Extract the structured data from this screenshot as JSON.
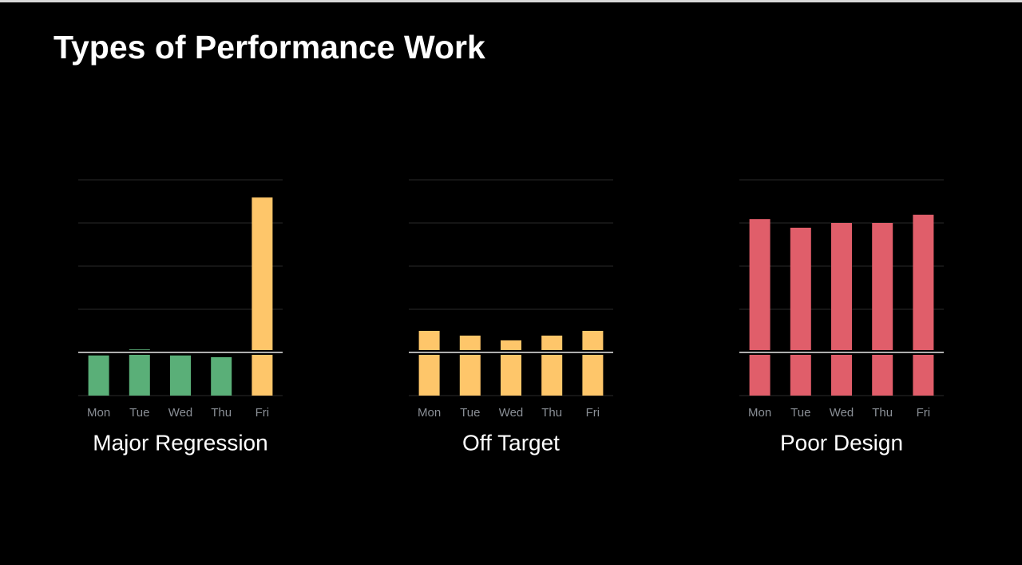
{
  "title": "Types of Performance Work",
  "chart_data": [
    {
      "type": "bar",
      "title": "Major Regression",
      "categories": [
        "Mon",
        "Tue",
        "Wed",
        "Thu",
        "Fri"
      ],
      "values": [
        0.93,
        1.07,
        0.93,
        0.89,
        4.59
      ],
      "colors": [
        "#5aaf78",
        "#5aaf78",
        "#5aaf78",
        "#5aaf78",
        "#fec66a"
      ],
      "ylim": [
        0,
        5
      ],
      "yticks": [
        0,
        1,
        2,
        3,
        4,
        5
      ],
      "grid": true,
      "target": 1
    },
    {
      "type": "bar",
      "title": "Off Target",
      "categories": [
        "Mon",
        "Tue",
        "Wed",
        "Thu",
        "Fri"
      ],
      "values": [
        1.5,
        1.39,
        1.28,
        1.39,
        1.5
      ],
      "colors": [
        "#fec66a",
        "#fec66a",
        "#fec66a",
        "#fec66a",
        "#fec66a"
      ],
      "ylim": [
        0,
        5
      ],
      "yticks": [
        0,
        1,
        2,
        3,
        4,
        5
      ],
      "grid": true,
      "target": 1
    },
    {
      "type": "bar",
      "title": "Poor Design",
      "categories": [
        "Mon",
        "Tue",
        "Wed",
        "Thu",
        "Fri"
      ],
      "values": [
        4.09,
        3.89,
        4.0,
        4.0,
        4.19
      ],
      "colors": [
        "#e05e6a",
        "#e05e6a",
        "#e05e6a",
        "#e05e6a",
        "#e05e6a"
      ],
      "ylim": [
        0,
        5
      ],
      "yticks": [
        0,
        1,
        2,
        3,
        4,
        5
      ],
      "grid": true,
      "target": 1
    }
  ]
}
